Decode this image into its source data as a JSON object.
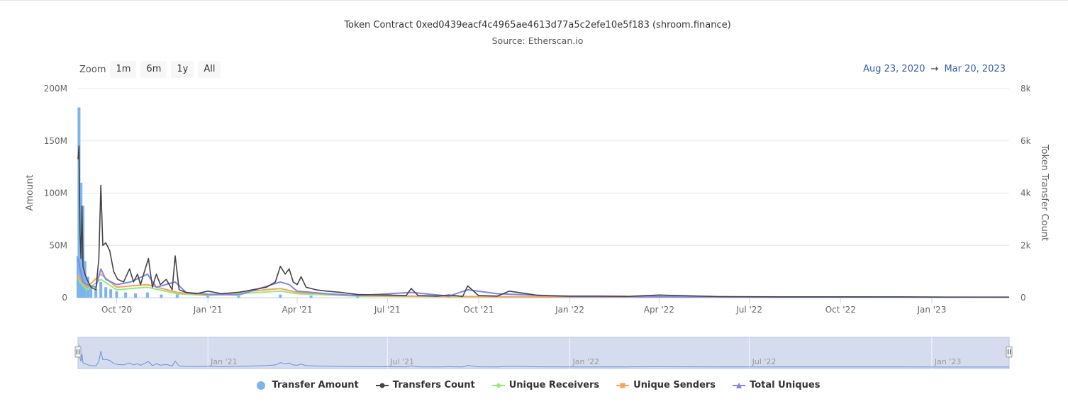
{
  "title": "Token Contract 0xed0439eacf4c4965ae4613d77a5c2efe10e5f183 (shroom.finance)",
  "subtitle": "Source: Etherscan.io",
  "zoom": {
    "label": "Zoom",
    "buttons": [
      "1m",
      "6m",
      "1y",
      "All"
    ],
    "selected": "All"
  },
  "range": {
    "from": "Aug 23, 2020",
    "arrow": "→",
    "to": "Mar 20, 2023"
  },
  "colors": {
    "transfer_amount": "#7cb5ec",
    "transfers_count": "#434348",
    "unique_receivers": "#90ed7d",
    "unique_senders": "#f7a35c",
    "total_uniques": "#8085e9",
    "navigator_fill": "#ccd6eb",
    "navigator_line": "#6f8fd6"
  },
  "chart_data": {
    "type": "line",
    "x_type": "date",
    "date_range": [
      "2020-08-23",
      "2023-03-20"
    ],
    "left_axis": {
      "title": "Amount",
      "ticks": [
        "0",
        "50M",
        "100M",
        "150M",
        "200M"
      ],
      "range": [
        0,
        200000000
      ]
    },
    "right_axis": {
      "title": "Token Transfer Count",
      "ticks": [
        "0",
        "2k",
        "4k",
        "6k",
        "8k"
      ],
      "range": [
        0,
        8000
      ]
    },
    "x_ticks": [
      "Oct '20",
      "Jan '21",
      "Apr '21",
      "Jul '21",
      "Oct '21",
      "Jan '22",
      "Apr '22",
      "Jul '22",
      "Oct '22",
      "Jan '23"
    ],
    "x_tick_dates": [
      "2020-10-01",
      "2021-01-01",
      "2021-04-01",
      "2021-07-01",
      "2021-10-01",
      "2022-01-01",
      "2022-04-01",
      "2022-07-01",
      "2022-10-01",
      "2023-01-01"
    ],
    "navigator_ticks": [
      "Jan '21",
      "Jul '21",
      "Jan '22",
      "Jul '22",
      "Jan '23"
    ],
    "navigator_tick_dates": [
      "2021-01-01",
      "2021-07-01",
      "2022-01-01",
      "2022-07-01",
      "2023-01-01"
    ],
    "grid": true,
    "legend_position": "bottom-center",
    "series": [
      {
        "name": "Transfer Amount",
        "kind": "column",
        "axis": "left",
        "x": [
          "2020-08-23",
          "2020-08-24",
          "2020-08-25",
          "2020-08-26",
          "2020-08-27",
          "2020-08-28",
          "2020-08-30",
          "2020-09-02",
          "2020-09-05",
          "2020-09-10",
          "2020-09-15",
          "2020-09-20",
          "2020-09-25",
          "2020-10-01",
          "2020-10-10",
          "2020-10-20",
          "2020-11-01",
          "2020-11-15",
          "2020-12-01",
          "2021-01-01",
          "2021-02-01",
          "2021-03-15",
          "2021-04-15",
          "2021-06-01",
          "2021-09-01",
          "2022-01-01",
          "2022-06-01",
          "2023-01-01"
        ],
        "values": [
          40000000,
          182000000,
          90000000,
          110000000,
          70000000,
          88000000,
          35000000,
          20000000,
          12000000,
          8000000,
          15000000,
          10000000,
          8000000,
          6000000,
          5000000,
          4000000,
          5000000,
          3000000,
          3000000,
          2000000,
          1500000,
          3000000,
          2000000,
          1000000,
          800000,
          500000,
          300000,
          200000
        ]
      },
      {
        "name": "Transfers Count",
        "kind": "line",
        "axis": "right",
        "x": [
          "2020-08-23",
          "2020-08-24",
          "2020-08-25",
          "2020-08-26",
          "2020-08-27",
          "2020-08-28",
          "2020-08-30",
          "2020-09-01",
          "2020-09-05",
          "2020-09-10",
          "2020-09-13",
          "2020-09-15",
          "2020-09-17",
          "2020-09-20",
          "2020-09-24",
          "2020-09-28",
          "2020-10-02",
          "2020-10-08",
          "2020-10-14",
          "2020-10-18",
          "2020-10-22",
          "2020-10-25",
          "2020-10-29",
          "2020-11-02",
          "2020-11-06",
          "2020-11-10",
          "2020-11-14",
          "2020-11-20",
          "2020-11-26",
          "2020-11-29",
          "2020-12-03",
          "2020-12-10",
          "2020-12-20",
          "2021-01-01",
          "2021-01-15",
          "2021-02-01",
          "2021-02-15",
          "2021-03-01",
          "2021-03-10",
          "2021-03-15",
          "2021-03-20",
          "2021-03-24",
          "2021-03-28",
          "2021-04-01",
          "2021-04-05",
          "2021-04-10",
          "2021-04-20",
          "2021-05-01",
          "2021-05-15",
          "2021-06-01",
          "2021-07-01",
          "2021-07-20",
          "2021-07-25",
          "2021-08-01",
          "2021-08-20",
          "2021-09-01",
          "2021-09-15",
          "2021-09-20",
          "2021-10-01",
          "2021-10-20",
          "2021-11-01",
          "2021-12-01",
          "2022-01-01",
          "2022-02-01",
          "2022-03-01",
          "2022-04-01",
          "2022-06-01",
          "2022-08-01",
          "2022-10-01",
          "2022-12-01",
          "2023-01-15",
          "2023-03-20"
        ],
        "values": [
          5300,
          5800,
          2500,
          1500,
          3500,
          1200,
          900,
          700,
          400,
          300,
          1500,
          4300,
          2000,
          2100,
          1800,
          1000,
          700,
          600,
          1100,
          600,
          900,
          500,
          1000,
          1500,
          400,
          900,
          500,
          700,
          300,
          1600,
          300,
          200,
          150,
          250,
          150,
          200,
          300,
          400,
          600,
          1200,
          900,
          1100,
          600,
          500,
          800,
          400,
          300,
          250,
          200,
          120,
          100,
          80,
          350,
          80,
          60,
          100,
          50,
          450,
          80,
          60,
          250,
          80,
          60,
          60,
          50,
          100,
          40,
          30,
          30,
          30,
          20,
          20
        ]
      },
      {
        "name": "Unique Receivers",
        "kind": "line",
        "axis": "right",
        "x": [
          "2020-08-23",
          "2020-08-25",
          "2020-09-01",
          "2020-09-15",
          "2020-10-01",
          "2020-11-01",
          "2020-12-01",
          "2021-01-01",
          "2021-03-15",
          "2021-04-01",
          "2021-06-01",
          "2021-09-01",
          "2022-01-01",
          "2022-06-01",
          "2023-03-20"
        ],
        "values": [
          800,
          600,
          300,
          700,
          300,
          400,
          150,
          80,
          250,
          150,
          60,
          40,
          25,
          15,
          10
        ]
      },
      {
        "name": "Unique Senders",
        "kind": "line",
        "axis": "right",
        "x": [
          "2020-08-23",
          "2020-08-25",
          "2020-09-01",
          "2020-09-15",
          "2020-10-01",
          "2020-11-01",
          "2020-12-01",
          "2021-01-01",
          "2021-03-15",
          "2021-04-01",
          "2021-06-01",
          "2021-09-01",
          "2022-01-01",
          "2022-06-01",
          "2023-03-20"
        ],
        "values": [
          900,
          700,
          400,
          900,
          400,
          500,
          200,
          100,
          350,
          200,
          80,
          50,
          30,
          20,
          12
        ]
      },
      {
        "name": "Total Uniques",
        "kind": "line",
        "axis": "right",
        "x": [
          "2020-08-23",
          "2020-08-25",
          "2020-08-28",
          "2020-09-01",
          "2020-09-10",
          "2020-09-15",
          "2020-09-20",
          "2020-10-01",
          "2020-10-15",
          "2020-11-01",
          "2020-11-10",
          "2020-11-29",
          "2020-12-10",
          "2021-01-01",
          "2021-02-01",
          "2021-03-15",
          "2021-03-24",
          "2021-04-01",
          "2021-05-01",
          "2021-06-01",
          "2021-07-25",
          "2021-09-01",
          "2021-09-20",
          "2021-10-20",
          "2022-01-01",
          "2022-06-01",
          "2023-03-20"
        ],
        "values": [
          1500,
          1100,
          600,
          500,
          400,
          1100,
          700,
          500,
          600,
          900,
          400,
          600,
          200,
          130,
          100,
          600,
          500,
          250,
          150,
          80,
          200,
          60,
          300,
          150,
          45,
          30,
          15
        ]
      }
    ]
  }
}
